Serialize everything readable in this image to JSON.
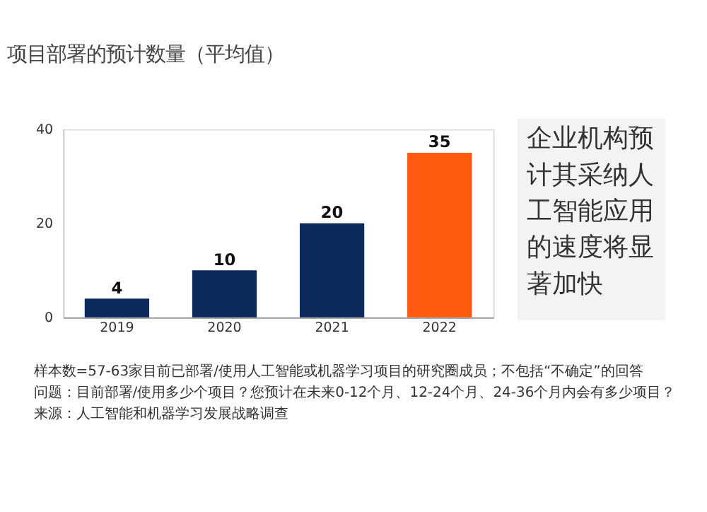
{
  "chart_data": {
    "type": "bar",
    "title": "项目部署的预计数量（平均值）",
    "categories": [
      "2019",
      "2020",
      "2021",
      "2022"
    ],
    "values": [
      4,
      10,
      20,
      35
    ],
    "colors": [
      "#0d2a5c",
      "#0d2a5c",
      "#0d2a5c",
      "#ff5a10"
    ],
    "ylim": [
      0,
      40
    ],
    "yticks": [
      0,
      20,
      40
    ],
    "grid": false,
    "data_labels": true,
    "annotations": [
      "企业机构预计其采纳人工智能应用的速度将显著加快",
      "样本数=57-63家目前已部署/使用人工智能或机器学习项目的研究圈成员；不包括“不确定”的回答",
      "问题：目前部署/使用多少个项目？您预计在未来0-12个月、12-24个月、24-36个月内会有多少项目？",
      "来源：人工智能和机器学习发展战略调查"
    ]
  }
}
